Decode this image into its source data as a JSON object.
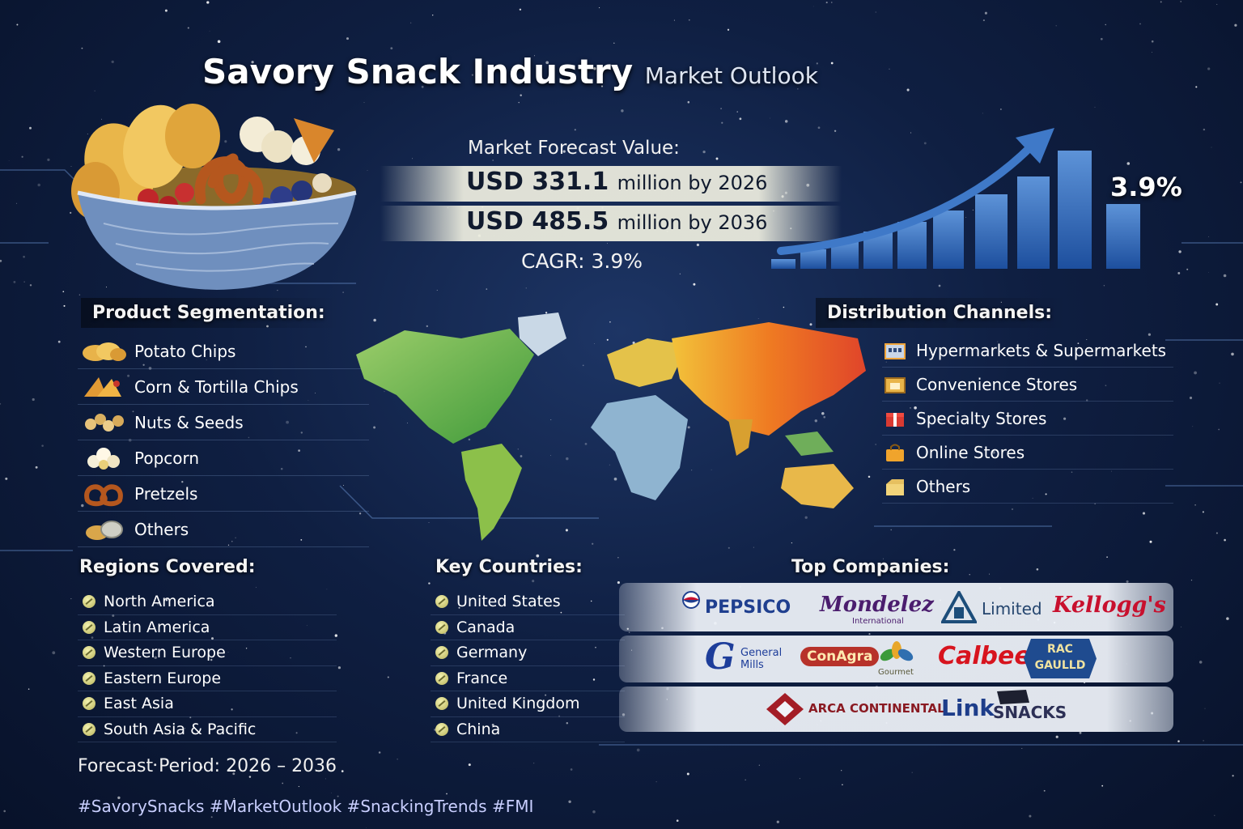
{
  "header": {
    "title": "Savory Snack Industry",
    "subtitle": "Market Outlook"
  },
  "forecast": {
    "label": "Market Forecast Value:",
    "line1_value": "USD 331.1",
    "line1_unit": "million by 2026",
    "line2_value": "USD 485.5",
    "line2_unit": "million by 2036",
    "cagr": "CAGR: 3.9%",
    "growth_label": "3.9%"
  },
  "product_segmentation": {
    "title": "Product Segmentation:",
    "items": [
      {
        "label": "Potato Chips",
        "icon": "potato-chips-icon"
      },
      {
        "label": "Corn & Tortilla Chips",
        "icon": "tortilla-chips-icon"
      },
      {
        "label": "Nuts & Seeds",
        "icon": "nuts-icon"
      },
      {
        "label": "Popcorn",
        "icon": "popcorn-icon"
      },
      {
        "label": "Pretzels",
        "icon": "pretzel-icon"
      },
      {
        "label": "Others",
        "icon": "snack-others-icon"
      }
    ]
  },
  "distribution_channels": {
    "title": "Distribution Channels:",
    "items": [
      {
        "label": "Hypermarkets & Supermarkets",
        "icon": "supermarket-icon"
      },
      {
        "label": "Convenience Stores",
        "icon": "convenience-store-icon"
      },
      {
        "label": "Specialty Stores",
        "icon": "gift-box-icon"
      },
      {
        "label": "Online Stores",
        "icon": "shopping-bag-icon"
      },
      {
        "label": "Others",
        "icon": "box-icon"
      }
    ]
  },
  "regions": {
    "title": "Regions Covered:",
    "items": [
      "North America",
      "Latin America",
      "Western Europe",
      "Eastern Europe",
      "East Asia",
      "South Asia & Pacific"
    ]
  },
  "countries": {
    "title": "Key Countries:",
    "items": [
      "United States",
      "Canada",
      "Germany",
      "France",
      "United Kingdom",
      "China"
    ]
  },
  "companies": {
    "title": "Top Companies:",
    "pepsico": "PEPSICO",
    "mondelez": "Mondelez",
    "mondelez_sub": "International",
    "limited": "Limited",
    "kelloggs": "Kellogg's",
    "general_mills_1": "General",
    "general_mills_2": "Mills",
    "conagra": "ConAgra",
    "gourmet": "Gourmet",
    "calbee": "Calbee",
    "rac_1": "RAC",
    "rac_2": "GAULLD",
    "arca": "ARCA CONTINENTAL",
    "link": "Link",
    "snacks": "SNACKS"
  },
  "footer": {
    "period": "Forecast Period: 2026 – 2036",
    "hashtags": "#SavorySnacks #MarketOutlook #SnackingTrends #FMI"
  },
  "colors": {
    "background": "#0f1f42",
    "bar": "#2f63a8",
    "accent_blue": "#1d4f9e",
    "pepsico_blue": "#1f3f8f",
    "mondelez_purple": "#4b1d6e",
    "kelloggs_red": "#c8102e"
  }
}
